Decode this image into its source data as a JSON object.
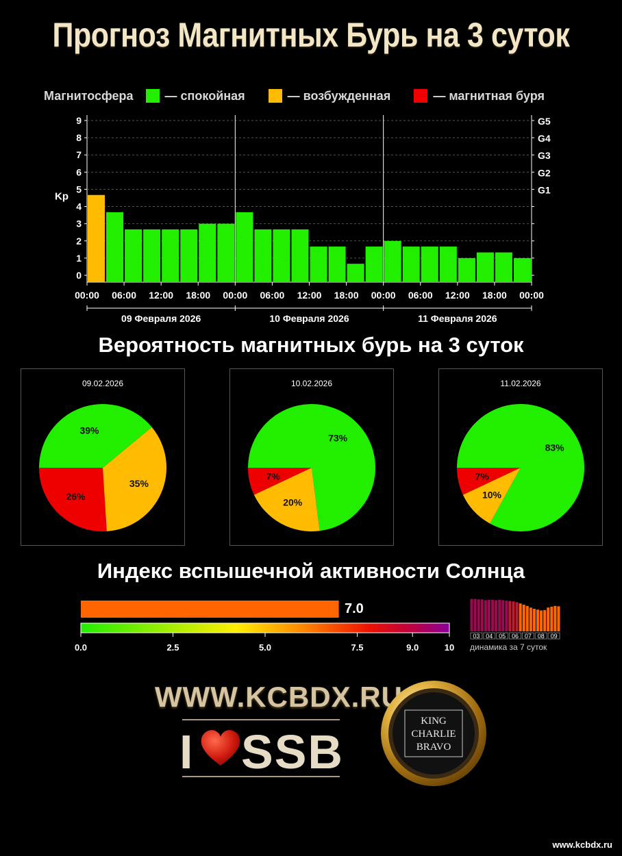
{
  "title": "Прогноз Магнитных Бурь на 3 суток",
  "legend": {
    "label": "Магнитосфера",
    "items": [
      {
        "color": "#22ee00",
        "text": "— спокойная"
      },
      {
        "color": "#ffbb00",
        "text": "— возбужденная"
      },
      {
        "color": "#ee0000",
        "text": "— магнитная буря"
      }
    ]
  },
  "chart_data": [
    {
      "type": "bar",
      "ylabel": "Kp",
      "ylim": [
        0,
        9
      ],
      "yticks": [
        "0",
        "1",
        "2",
        "3",
        "4",
        "5",
        "6",
        "7",
        "8",
        "9"
      ],
      "right_ticks": [
        {
          "value": 5,
          "label": "G1"
        },
        {
          "value": 6,
          "label": "G2"
        },
        {
          "value": 7,
          "label": "G3"
        },
        {
          "value": 8,
          "label": "G4"
        },
        {
          "value": 9,
          "label": "G5"
        }
      ],
      "x_tick_labels": [
        "00:00",
        "06:00",
        "12:00",
        "18:00",
        "00:00",
        "06:00",
        "12:00",
        "18:00",
        "00:00",
        "06:00",
        "12:00",
        "18:00",
        "00:00"
      ],
      "days": [
        "09 Февраля 2026",
        "10 Февраля 2026",
        "11 Февраля 2026"
      ],
      "grid": true,
      "values": [
        4.67,
        3.67,
        2.67,
        2.67,
        2.67,
        2.67,
        3.0,
        3.0,
        3.67,
        2.67,
        2.67,
        2.67,
        1.67,
        1.67,
        0.67,
        1.67,
        2.0,
        1.67,
        1.67,
        1.67,
        1.0,
        1.33,
        1.33,
        1.0
      ],
      "colors": {
        "quiet": "#22ee00",
        "active": "#ffbb00"
      }
    },
    {
      "type": "pie",
      "date": "09.02.2026",
      "slices": [
        {
          "label": "39%",
          "value": 39,
          "color": "#22ee00"
        },
        {
          "label": "35%",
          "value": 35,
          "color": "#ffbb00"
        },
        {
          "label": "26%",
          "value": 26,
          "color": "#ee0000"
        }
      ]
    },
    {
      "type": "pie",
      "date": "10.02.2026",
      "slices": [
        {
          "label": "73%",
          "value": 73,
          "color": "#22ee00"
        },
        {
          "label": "20%",
          "value": 20,
          "color": "#ffbb00"
        },
        {
          "label": "7%",
          "value": 7,
          "color": "#ee0000"
        }
      ]
    },
    {
      "type": "pie",
      "date": "11.02.2026",
      "slices": [
        {
          "label": "83%",
          "value": 83,
          "color": "#22ee00"
        },
        {
          "label": "10%",
          "value": 10,
          "color": "#ffbb00"
        },
        {
          "label": "7%",
          "value": 7,
          "color": "#ee0000"
        }
      ]
    },
    {
      "type": "bar",
      "label": "динамика за 7 суток",
      "days": [
        "03",
        "04",
        "05",
        "06",
        "07",
        "08",
        "09"
      ],
      "values": [
        7.9,
        7.9,
        7.8,
        7.8,
        7.6,
        7.7,
        7.7,
        7.6,
        7.7,
        7.6,
        7.5,
        7.4,
        7.3,
        7.1,
        6.8,
        6.5,
        6.2,
        5.8,
        5.5,
        5.3,
        5.1,
        5.2,
        5.8,
        6.0,
        6.2,
        6.1
      ]
    }
  ],
  "sections": {
    "probability": "Вероятность магнитных бурь на 3 суток",
    "flare": "Индекс вспышечной активности Солнца"
  },
  "flare_index": {
    "value": 7.0,
    "value_label": "7.0",
    "bar_color": "#ff6600",
    "scale_ticks": [
      "0.0",
      "2.5",
      "5.0",
      "7.5",
      "9.0",
      "10"
    ],
    "range": [
      0,
      10
    ]
  },
  "branding": {
    "site": "WWW.KCBDX.RU",
    "ssb_i": "I",
    "ssb_text": "SSB",
    "badge_lines": [
      "KING",
      "CHARLIE",
      "BRAVO"
    ],
    "footer_url": "www.kcbdx.ru"
  }
}
